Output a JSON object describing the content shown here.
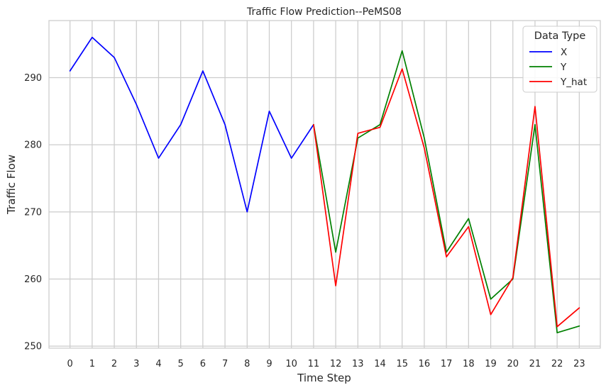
{
  "chart_data": {
    "type": "line",
    "title": "Traffic Flow Prediction--PeMS08",
    "xlabel": "Time Step",
    "ylabel": "Traffic Flow",
    "xlim": [
      -0.95,
      23.95
    ],
    "ylim": [
      249.7,
      298.5
    ],
    "x_ticks": [
      "0",
      "1",
      "2",
      "3",
      "4",
      "5",
      "6",
      "7",
      "8",
      "9",
      "10",
      "11",
      "12",
      "13",
      "14",
      "15",
      "16",
      "17",
      "18",
      "19",
      "20",
      "21",
      "22",
      "23"
    ],
    "y_ticks": [
      250,
      260,
      270,
      280,
      290
    ],
    "grid": true,
    "legend": {
      "title": "Data Type",
      "position": "top-right"
    },
    "series": [
      {
        "name": "X",
        "color": "#0000ff",
        "x": [
          0,
          1,
          2,
          3,
          4,
          5,
          6,
          7,
          8,
          9,
          10,
          11
        ],
        "values": [
          291,
          296,
          293,
          286,
          278,
          283,
          291,
          283,
          270,
          285,
          278,
          283
        ]
      },
      {
        "name": "Y",
        "color": "#008000",
        "x": [
          11,
          12,
          13,
          14,
          15,
          16,
          17,
          18,
          19,
          20,
          21,
          22,
          23
        ],
        "values": [
          283,
          264,
          281,
          283,
          294,
          281,
          264,
          269,
          257,
          260,
          283,
          252,
          253
        ]
      },
      {
        "name": "Y_hat",
        "color": "#ff0000",
        "x": [
          11,
          12,
          13,
          14,
          15,
          16,
          17,
          18,
          19,
          20,
          21,
          22,
          23
        ],
        "values": [
          283,
          259,
          281.7,
          282.6,
          291.3,
          279.5,
          263.3,
          267.8,
          254.7,
          260.2,
          285.7,
          252.9,
          255.7
        ]
      }
    ]
  }
}
